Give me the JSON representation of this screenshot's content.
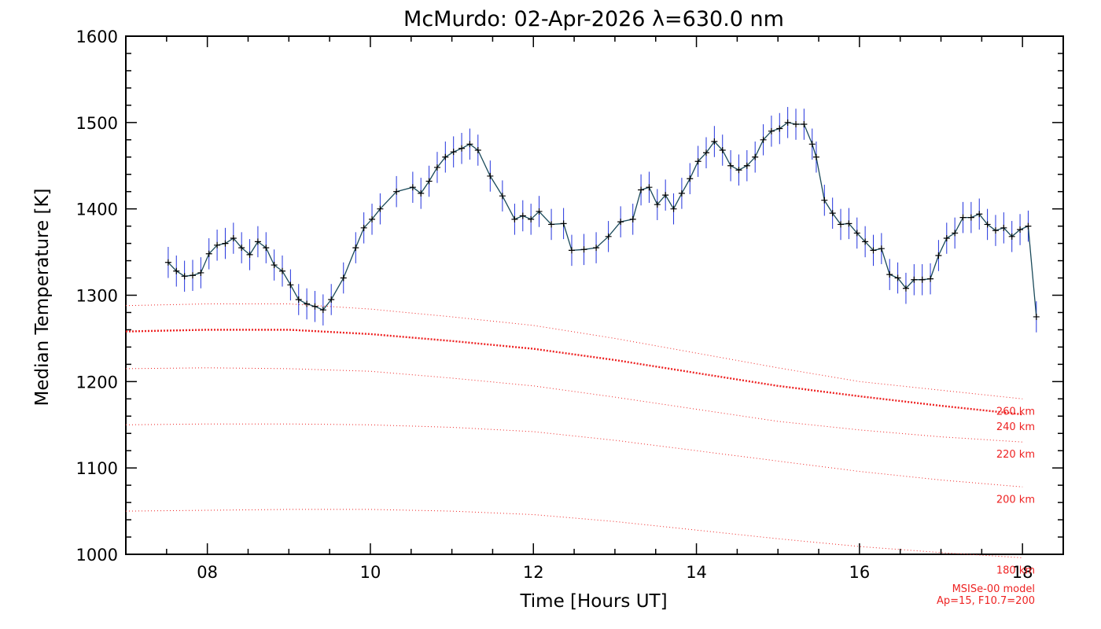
{
  "chart_data": {
    "type": "line",
    "title": "McMurdo: 02-Apr-2026 λ=630.0 nm",
    "xlabel": "Time [Hours UT]",
    "ylabel": "Median Temperature [K]",
    "xlim": [
      7.0,
      18.5
    ],
    "ylim": [
      1000,
      1600
    ],
    "x_ticks": [
      8,
      10,
      12,
      14,
      16,
      18
    ],
    "x_tick_labels": [
      "08",
      "10",
      "12",
      "14",
      "16",
      "18"
    ],
    "y_ticks": [
      1000,
      1100,
      1200,
      1300,
      1400,
      1500,
      1600
    ],
    "y_tick_labels": [
      "1000",
      "1100",
      "1200",
      "1300",
      "1400",
      "1500",
      "1600"
    ],
    "colors": {
      "data_line": "#1a4a5a",
      "error_bar": "#2233dd",
      "marker": "#000000",
      "model": "#ee2222"
    },
    "series": [
      {
        "x": [
          7.52,
          7.62,
          7.72,
          7.82,
          7.92,
          8.02,
          8.12,
          8.22,
          8.32,
          8.42,
          8.52,
          8.62,
          8.72,
          8.82,
          8.92,
          9.02,
          9.12,
          9.22,
          9.32,
          9.42,
          9.52,
          9.67,
          9.82,
          9.92,
          10.02,
          10.12,
          10.32,
          10.52,
          10.62,
          10.72,
          10.82,
          10.92,
          11.02,
          11.12,
          11.22,
          11.32,
          11.47,
          11.62,
          11.77,
          11.87,
          11.97,
          12.07,
          12.22,
          12.37,
          12.47,
          12.62,
          12.77,
          12.92,
          13.07,
          13.22,
          13.32,
          13.42,
          13.52,
          13.62,
          13.72,
          13.82,
          13.92,
          14.02,
          14.12,
          14.22,
          14.32,
          14.42,
          14.52,
          14.62,
          14.72,
          14.82,
          14.92,
          15.02,
          15.12,
          15.22,
          15.32,
          15.42,
          15.47,
          15.57,
          15.67,
          15.77,
          15.87,
          15.97,
          16.07,
          16.17,
          16.27,
          16.37,
          16.47,
          16.57,
          16.67,
          16.77,
          16.87,
          16.97,
          17.07,
          17.17,
          17.27,
          17.37,
          17.47,
          17.57,
          17.67,
          17.77,
          17.87,
          17.97,
          18.07,
          18.17
        ],
        "y": [
          1338,
          1328,
          1322,
          1323,
          1326,
          1348,
          1358,
          1360,
          1366,
          1355,
          1347,
          1362,
          1355,
          1335,
          1328,
          1312,
          1295,
          1290,
          1287,
          1283,
          1295,
          1320,
          1355,
          1378,
          1388,
          1400,
          1420,
          1425,
          1418,
          1432,
          1448,
          1460,
          1466,
          1470,
          1475,
          1468,
          1438,
          1415,
          1388,
          1392,
          1388,
          1397,
          1382,
          1383,
          1352,
          1353,
          1355,
          1368,
          1385,
          1388,
          1422,
          1425,
          1405,
          1416,
          1400,
          1418,
          1435,
          1455,
          1465,
          1478,
          1468,
          1450,
          1445,
          1450,
          1460,
          1480,
          1490,
          1493,
          1500,
          1498,
          1498,
          1475,
          1460,
          1410,
          1395,
          1382,
          1383,
          1372,
          1362,
          1352,
          1354,
          1324,
          1320,
          1308,
          1318,
          1318,
          1319,
          1346,
          1366,
          1372,
          1390,
          1390,
          1394,
          1382,
          1375,
          1378,
          1368,
          1376,
          1380,
          1275
        ],
        "error": 18
      }
    ],
    "model_curves": [
      {
        "label": "260 km",
        "x": [
          7.0,
          8.0,
          9.0,
          10.0,
          11.0,
          12.0,
          13.0,
          14.0,
          15.0,
          16.0,
          17.0,
          18.0
        ],
        "y": [
          1288,
          1290,
          1290,
          1284,
          1275,
          1265,
          1250,
          1233,
          1216,
          1200,
          1190,
          1180
        ]
      },
      {
        "label": "240 km",
        "x": [
          7.0,
          8.0,
          9.0,
          10.0,
          11.0,
          12.0,
          13.0,
          14.0,
          15.0,
          16.0,
          17.0,
          18.0
        ],
        "y": [
          1258,
          1260,
          1260,
          1255,
          1247,
          1238,
          1225,
          1210,
          1195,
          1183,
          1172,
          1162
        ]
      },
      {
        "label": "220 km",
        "x": [
          7.0,
          8.0,
          9.0,
          10.0,
          11.0,
          12.0,
          13.0,
          14.0,
          15.0,
          16.0,
          17.0,
          18.0
        ],
        "y": [
          1215,
          1216,
          1215,
          1212,
          1204,
          1195,
          1182,
          1168,
          1154,
          1144,
          1136,
          1130
        ]
      },
      {
        "label": "200 km",
        "x": [
          7.0,
          8.0,
          9.0,
          10.0,
          11.0,
          12.0,
          13.0,
          14.0,
          15.0,
          16.0,
          17.0,
          18.0
        ],
        "y": [
          1150,
          1151,
          1151,
          1150,
          1147,
          1142,
          1132,
          1120,
          1108,
          1096,
          1086,
          1078
        ]
      },
      {
        "label": "180 km",
        "x": [
          7.0,
          8.0,
          9.0,
          10.0,
          11.0,
          12.0,
          13.0,
          14.0,
          15.0,
          16.0,
          17.0,
          18.0
        ],
        "y": [
          1050,
          1051,
          1052,
          1052,
          1050,
          1046,
          1038,
          1028,
          1018,
          1009,
          1002,
          996
        ]
      }
    ],
    "model_note": [
      "MSISe-00 model",
      "Ap=15, F10.7=200"
    ]
  }
}
